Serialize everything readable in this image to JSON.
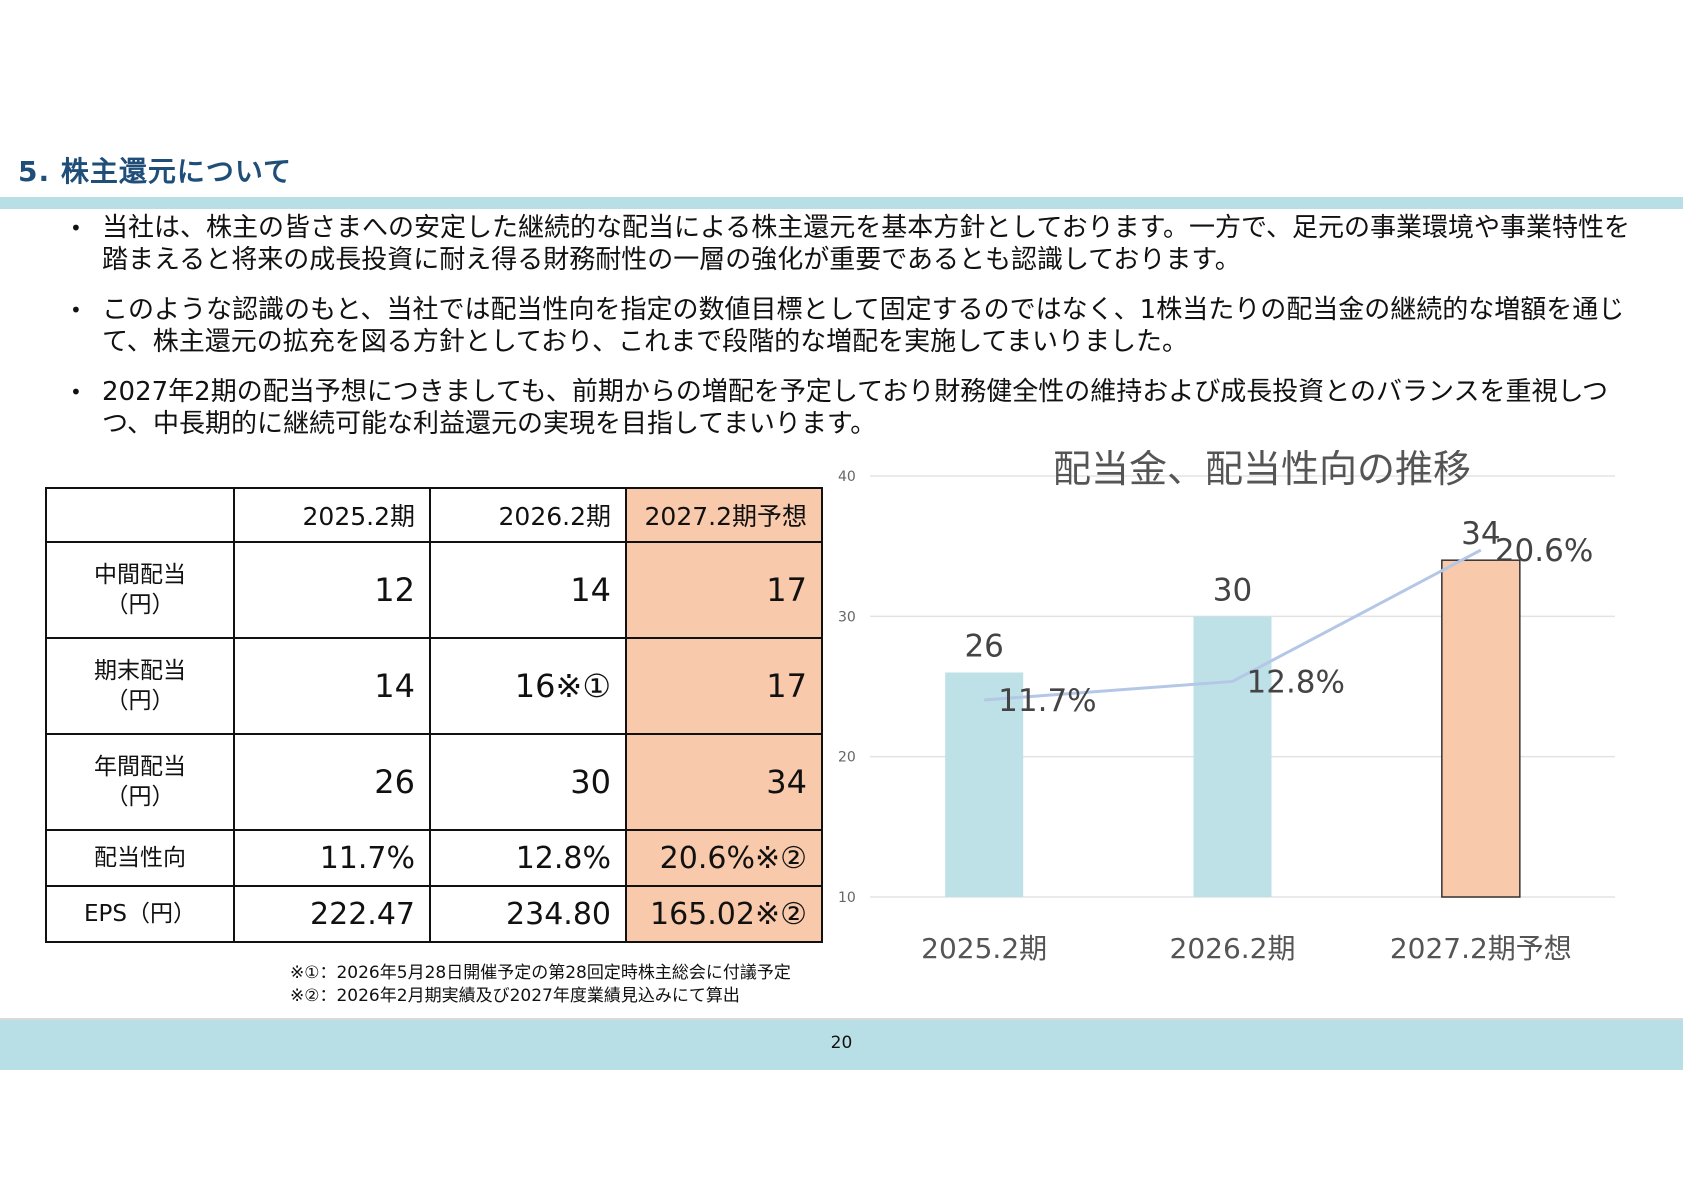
{
  "page": {
    "title": "5. 株主還元について",
    "number": "20"
  },
  "bullets": [
    {
      "bullet": "•",
      "text": "当社は、株主の皆さまへの安定した継続的な配当による株主還元を基本方針としております。一方で、足元の事業環境や事業特性を踏まえると将来の成長投資に耐え得る財務耐性の一層の強化が重要であるとも認識しております。"
    },
    {
      "bullet": "•",
      "text": "このような認識のもと、当社では配当性向を指定の数値目標として固定するのではなく、1株当たりの配当金の継続的な増額を通じて、株主還元の拡充を図る方針としており、これまで段階的な増配を実施してまいりました。"
    },
    {
      "bullet": "•",
      "text": "2027年2期の配当予想につきましても、前期からの増配を予定しており財務健全性の維持および成長投資とのバランスを重視しつつ、中長期的に継続可能な利益還元の実現を目指してまいります。"
    }
  ],
  "table": {
    "columns": [
      "2025.2期",
      "2026.2期",
      "2027.2期予想"
    ],
    "rows": [
      {
        "label1": "中間配当",
        "label2": "（円）",
        "values": [
          "12",
          "14",
          "17"
        ]
      },
      {
        "label1": "期末配当",
        "label2": "（円）",
        "values": [
          "14",
          "16※①",
          "17"
        ]
      },
      {
        "label1": "年間配当",
        "label2": "（円）",
        "values": [
          "26",
          "30",
          "34"
        ]
      },
      {
        "label1": "配当性向",
        "label2": "",
        "values": [
          "11.7%",
          "12.8%",
          "20.6%※②"
        ]
      },
      {
        "label1": "EPS（円）",
        "label2": "",
        "values": [
          "222.47",
          "234.80",
          "165.02※②"
        ]
      }
    ],
    "forecast_color": "#f8c9aa"
  },
  "footnotes": [
    "※①：2026年5月28日開催予定の第28回定時株主総会に付議予定",
    "※②：2026年2月期実績及び2027年度業績見込みにて算出"
  ],
  "chart_data": {
    "type": "bar",
    "title": "配当金、配当性向の推移",
    "categories": [
      "2025.2期",
      "2026.2期",
      "2027.2期予想"
    ],
    "series": [
      {
        "values": [
          26,
          30,
          34
        ],
        "labels": [
          "26",
          "30",
          "34"
        ],
        "colors": [
          "#bde1e7",
          "#bde1e7",
          "#f8c9aa"
        ]
      },
      {
        "type": "line",
        "values": [
          11.7,
          12.8,
          20.6
        ],
        "labels": [
          "11.7%",
          "12.8%",
          "20.6%"
        ],
        "color": "#b4c7e7"
      }
    ],
    "ylim": [
      10,
      40
    ],
    "yticks": [
      "10",
      "20",
      "30",
      "40"
    ],
    "line_ylim": [
      0,
      25
    ],
    "grid": true
  }
}
